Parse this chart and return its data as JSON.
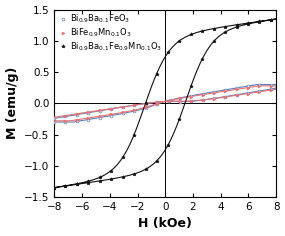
{
  "title": "",
  "xlabel": "H (kOe)",
  "ylabel": "M (emu/g)",
  "xlim": [
    -8,
    8
  ],
  "ylim": [
    -1.5,
    1.5
  ],
  "xticks": [
    -8,
    -6,
    -4,
    -2,
    0,
    2,
    4,
    6,
    8
  ],
  "yticks": [
    -1.5,
    -1.0,
    -0.5,
    0.0,
    0.5,
    1.0,
    1.5
  ],
  "series": [
    {
      "label": "Bi$_{0.9}$Ba$_{0.1}$FeO$_3$",
      "color": "#5B7FBF",
      "marker": "o",
      "markersize": 2.0,
      "linewidth": 0.8,
      "type": "linear_hysteresis",
      "slope": 0.037,
      "Hc": 0.8,
      "Mr": 0.055,
      "saturation": 0.3
    },
    {
      "label": "BiFe$_{0.9}$Mn$_{0.1}$O$_3$",
      "color": "#E87070",
      "marker": ">",
      "markersize": 2.0,
      "linewidth": 0.8,
      "type": "linear_hysteresis",
      "slope": 0.034,
      "Hc": 1.0,
      "Mr": 0.048,
      "saturation": 0.28
    },
    {
      "label": "Bi$_{0.9}$Ba$_{0.1}$Fe$_{0.9}$Mn$_{0.1}$O$_3$",
      "color": "#111111",
      "marker": "*",
      "markersize": 2.5,
      "linewidth": 0.8,
      "type": "nonlinear_hysteresis",
      "slope": 0.04,
      "Hc": 1.5,
      "Mr": 0.32,
      "Ms": 1.35,
      "sharpness": 1.8
    }
  ],
  "n_markers": 40,
  "legend_fontsize": 6.0,
  "axis_fontsize": 9,
  "tick_fontsize": 7.5,
  "background_color": "#ffffff"
}
